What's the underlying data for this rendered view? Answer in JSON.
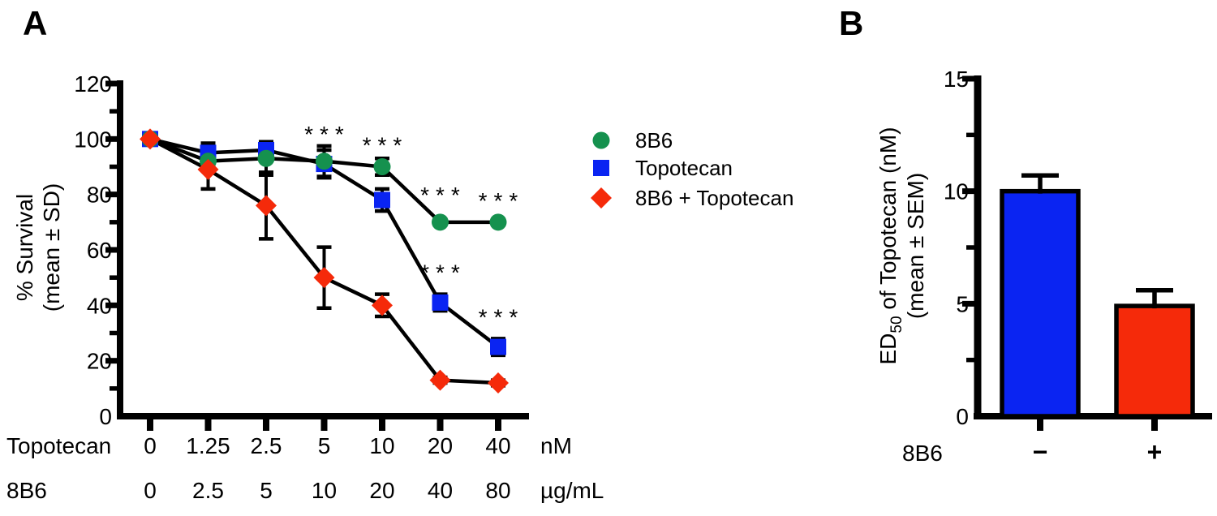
{
  "figure": {
    "background": "#ffffff",
    "text_color": "#000000",
    "panels": [
      {
        "letter": "A"
      },
      {
        "letter": "B"
      }
    ]
  },
  "chart_data": [
    {
      "type": "line",
      "panel": "A",
      "title": "",
      "ylabel_lines": [
        "% Survival",
        "(mean ± SD)"
      ],
      "ylim": [
        0,
        120
      ],
      "yticks_major": [
        0,
        20,
        40,
        60,
        80,
        100,
        120
      ],
      "yticks_minor": [
        10,
        30,
        50,
        70,
        90,
        110
      ],
      "x_axis_rows": [
        {
          "header": "Topotecan",
          "labels": [
            "0",
            "1.25",
            "2.5",
            "5",
            "10",
            "20",
            "40"
          ],
          "unit": "nM"
        },
        {
          "header": "8B6",
          "labels": [
            "0",
            "2.5",
            "5",
            "10",
            "20",
            "40",
            "80"
          ],
          "unit": "µg/mL"
        }
      ],
      "error_type": "SD",
      "series": [
        {
          "name": "8B6",
          "marker": "circle",
          "color": "#15914e",
          "values": [
            100,
            92,
            93,
            92,
            90,
            70,
            70
          ],
          "sd": [
            0,
            2,
            6,
            5.5,
            3,
            1,
            1
          ]
        },
        {
          "name": "Topotecan",
          "marker": "square",
          "color": "#0a24f2",
          "values": [
            100,
            95,
            96,
            91,
            78,
            41,
            25
          ],
          "sd": [
            0,
            3.5,
            3,
            5,
            4,
            3,
            3
          ]
        },
        {
          "name": "8B6 + Topotecan",
          "marker": "diamond",
          "color": "#f52a0a",
          "values": [
            100,
            89,
            76,
            50,
            40,
            13,
            12
          ],
          "sd": [
            0,
            7,
            12,
            11,
            4,
            1,
            1
          ]
        }
      ],
      "significance": [
        {
          "x_index": 3,
          "at_y": 99,
          "label": "***"
        },
        {
          "x_index": 4,
          "at_y": 95,
          "label": "***"
        },
        {
          "x_index": 5,
          "at_y": 77,
          "label": "***"
        },
        {
          "x_index": 6,
          "at_y": 75,
          "label": "***"
        },
        {
          "x_index": 5,
          "at_y": 49,
          "label": "***"
        },
        {
          "x_index": 6,
          "at_y": 33,
          "label": "***"
        }
      ],
      "legend": {
        "position": "right-of-plot"
      },
      "grid": false
    },
    {
      "type": "bar",
      "panel": "B",
      "title": "",
      "ylabel_line1": {
        "pre": "ED",
        "sub": "50",
        "post": " of Topotecan (nM)"
      },
      "ylabel_line2": "(mean ± SEM)",
      "ylim": [
        0,
        15
      ],
      "yticks_major": [
        0,
        5,
        10,
        15
      ],
      "yticks_minor": [
        2.5,
        7.5,
        12.5
      ],
      "xlabel": "8B6",
      "categories": [
        "−",
        "+"
      ],
      "values": [
        10,
        4.9
      ],
      "sem": [
        0.7,
        0.7
      ],
      "bar_colors": [
        "#0a24f2",
        "#f52a0a"
      ],
      "error_type": "SEM",
      "grid": false
    }
  ]
}
